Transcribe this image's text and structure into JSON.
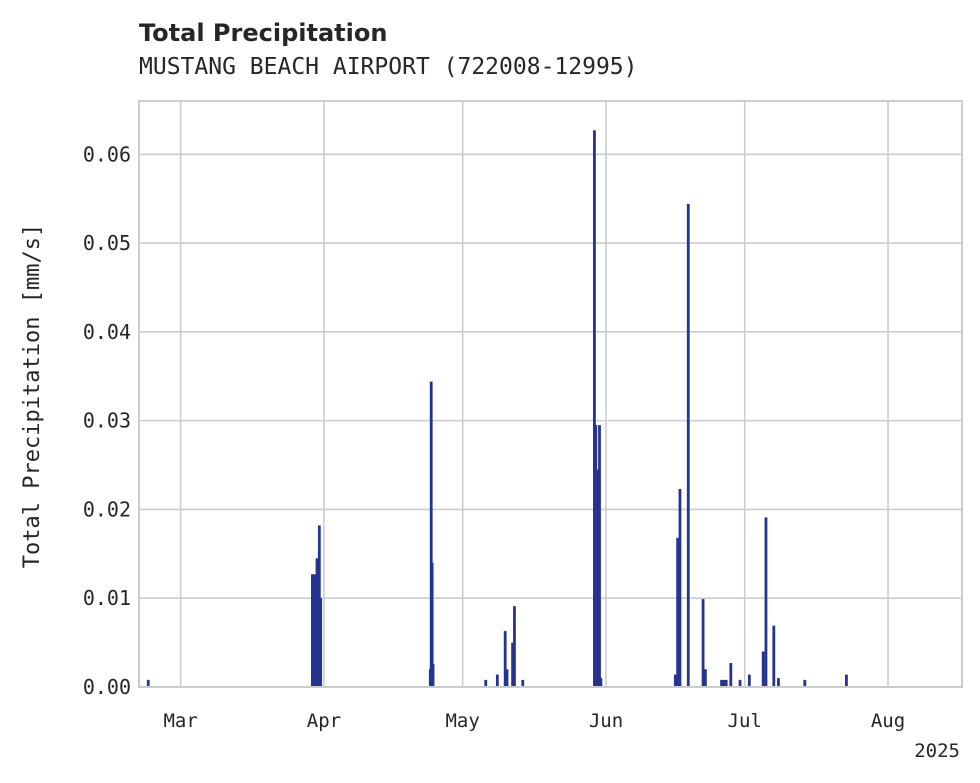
{
  "chart_data": {
    "type": "bar",
    "title": "Total Precipitation",
    "subtitle": "MUSTANG BEACH AIRPORT (722008-12995)",
    "xlabel": "",
    "ylabel": "Total Precipitation [mm/s]",
    "ylim": [
      0,
      0.066
    ],
    "yticks": [
      0.0,
      0.01,
      0.02,
      0.03,
      0.04,
      0.05,
      0.06
    ],
    "ytick_labels": [
      "0.00",
      "0.01",
      "0.02",
      "0.03",
      "0.04",
      "0.05",
      "0.06"
    ],
    "xlim_day_of_year": [
      51,
      229
    ],
    "xticks_day_of_year": [
      60,
      91,
      121,
      152,
      182,
      213
    ],
    "xtick_labels": [
      "Mar",
      "Apr",
      "May",
      "Jun",
      "Jul",
      "Aug"
    ],
    "year_label": "2025",
    "grid": true,
    "color": "#27348e",
    "series": [
      {
        "name": "Total Precipitation",
        "day_of_year": [
          53.0,
          88.5,
          89.0,
          89.5,
          90.0,
          90.3,
          114.0,
          114.2,
          114.4,
          114.6,
          126.0,
          128.5,
          130.2,
          130.6,
          131.8,
          132.2,
          134.0,
          149.5,
          149.8,
          150.3,
          150.6,
          150.9,
          167.0,
          167.5,
          168.0,
          169.8,
          173.0,
          173.5,
          177.0,
          177.5,
          178.0,
          179.0,
          181.0,
          183.0,
          186.0,
          186.6,
          188.3,
          189.3,
          195.0,
          204.0
        ],
        "values": [
          0.0008,
          0.0127,
          0.0127,
          0.0145,
          0.0182,
          0.01,
          0.002,
          0.0344,
          0.014,
          0.0026,
          0.0008,
          0.0014,
          0.0063,
          0.002,
          0.005,
          0.0091,
          0.0008,
          0.0627,
          0.0295,
          0.0245,
          0.0295,
          0.001,
          0.0014,
          0.0168,
          0.0223,
          0.0544,
          0.0099,
          0.002,
          0.0008,
          0.0008,
          0.0008,
          0.0027,
          0.0008,
          0.0014,
          0.004,
          0.0191,
          0.0069,
          0.001,
          0.0008,
          0.0014
        ]
      }
    ]
  }
}
